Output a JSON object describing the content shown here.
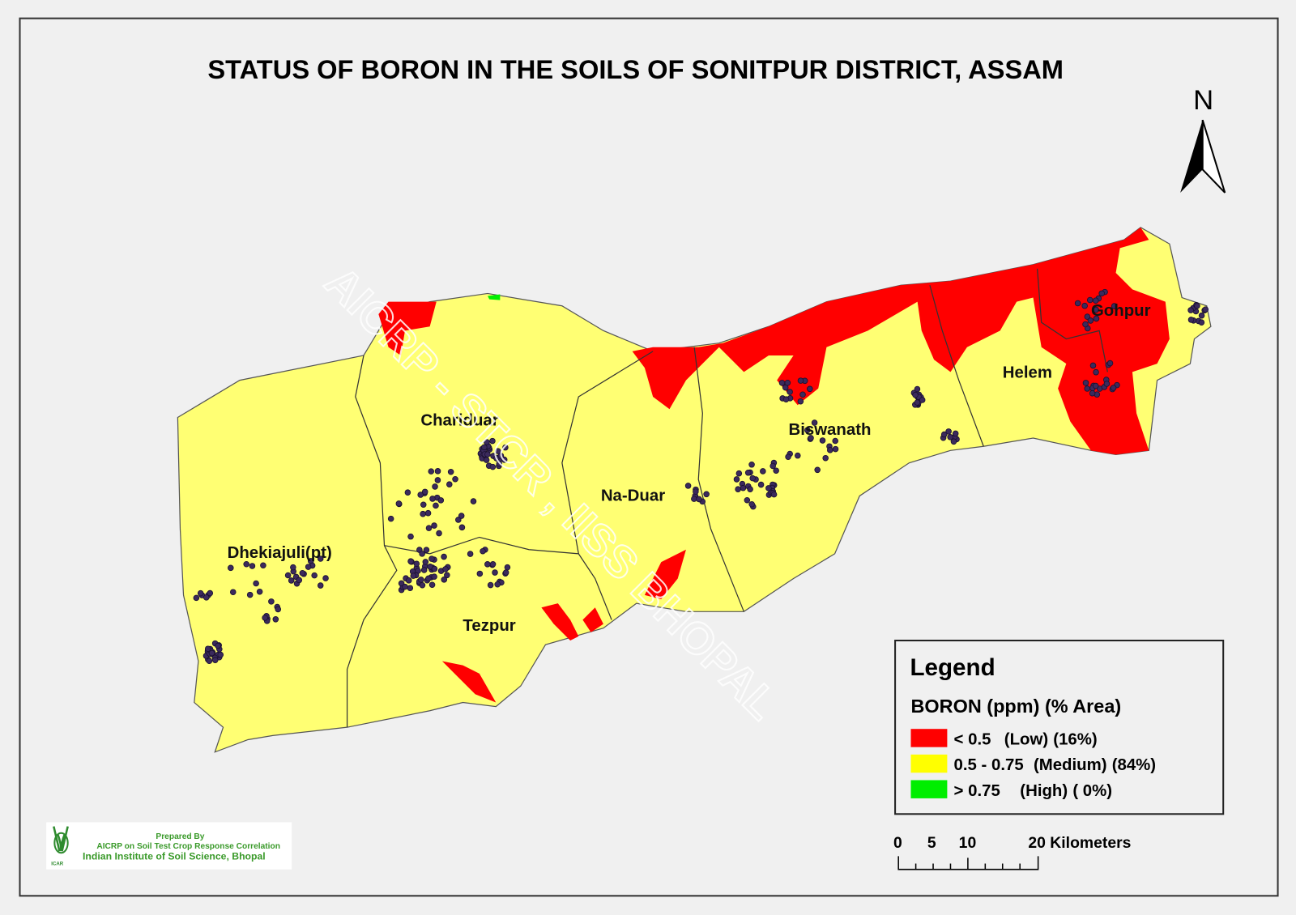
{
  "title": "STATUS OF  BORON   IN THE SOILS OF SONITPUR  DISTRICT, ASSAM",
  "north_arrow": {
    "label": "N",
    "icon": "north-arrow-icon"
  },
  "watermark": "AICRP - STCR , IISS BHOPAL",
  "places": [
    "Chariduar",
    "Dhekiajuli(pt)",
    "Tezpur",
    "Na-Duar",
    "Biswanath",
    "Helem",
    "Gohpur"
  ],
  "legend": {
    "title": "Legend",
    "subtitle": "BORON (ppm) (% Area)",
    "items": [
      {
        "range": "< 0.5",
        "class": "(Low)",
        "area": "(16%)",
        "percent": 16,
        "color": "#ff0000"
      },
      {
        "range": "0.5   - 0.75",
        "class": "(Medium)",
        "area": "(84%)",
        "percent": 84,
        "color": "#ffff73"
      },
      {
        "range": "> 0.75",
        "class": "(High)",
        "area": "( 0%)",
        "percent": 0,
        "color": "#00ee00"
      }
    ]
  },
  "scale_bar": {
    "labels": [
      "0",
      "5",
      "10",
      "20 Kilometers"
    ]
  },
  "credit": {
    "line1": "Prepared By",
    "line2": "AICRP on Soil Test Crop Response Correlation",
    "line3": "Indian Institute of Soil Science, Bhopal",
    "logo_text": "ICAR"
  },
  "colors": {
    "low": "#ff0000",
    "medium": "#ffff73",
    "high": "#00ee00",
    "sample_points": "#3b2a5c"
  }
}
